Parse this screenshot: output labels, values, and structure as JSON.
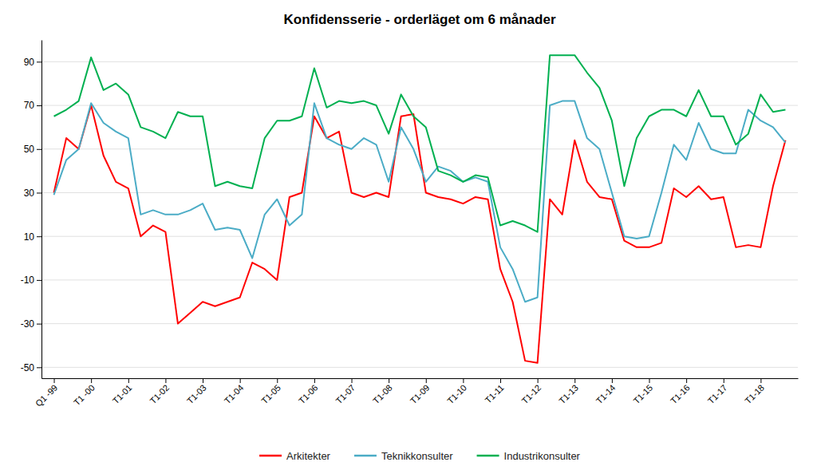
{
  "chart_data": {
    "type": "line",
    "title": "Konfidensserie - orderläget om 6 månader",
    "categories": [
      "Q1 -99",
      null,
      null,
      "T1 -00",
      null,
      null,
      "T1-01",
      null,
      null,
      "T1-02",
      null,
      null,
      "T1-03",
      null,
      null,
      "T1-04",
      null,
      null,
      "T1-05",
      null,
      null,
      "T1-06",
      null,
      null,
      "T1-07",
      null,
      null,
      "T1-08",
      null,
      null,
      "T1-09",
      null,
      null,
      "T1-10",
      null,
      null,
      "T1-11",
      null,
      null,
      "T1-12",
      null,
      null,
      "T1-13",
      null,
      null,
      "T1-14",
      null,
      null,
      "T1-15",
      null,
      null,
      "T1-16",
      null,
      null,
      "T1-17",
      null,
      null,
      "T1-18",
      null,
      null
    ],
    "series": [
      {
        "name": "Arkitekter",
        "color": "#FF0000",
        "values": [
          30,
          55,
          50,
          70,
          47,
          35,
          32,
          10,
          15,
          12,
          -30,
          -25,
          -20,
          -22,
          -20,
          -18,
          -2,
          -5,
          -10,
          28,
          30,
          65,
          55,
          58,
          30,
          28,
          30,
          28,
          65,
          66,
          30,
          28,
          27,
          25,
          28,
          27,
          -5,
          -20,
          -47,
          -48,
          27,
          20,
          54,
          35,
          28,
          27,
          8,
          5,
          5,
          7,
          32,
          28,
          33,
          27,
          28,
          5,
          6,
          5,
          33,
          54
        ]
      },
      {
        "name": "Teknikkonsulter",
        "color": "#4BACC6",
        "values": [
          29,
          45,
          50,
          71,
          62,
          58,
          55,
          20,
          22,
          20,
          20,
          22,
          25,
          13,
          14,
          13,
          0,
          20,
          27,
          15,
          20,
          71,
          55,
          52,
          50,
          55,
          52,
          35,
          60,
          50,
          35,
          42,
          40,
          35,
          37,
          35,
          5,
          -5,
          -20,
          -18,
          70,
          72,
          72,
          55,
          50,
          30,
          10,
          9,
          10,
          30,
          52,
          45,
          62,
          50,
          48,
          48,
          68,
          63,
          60,
          53
        ]
      },
      {
        "name": "Industrikonsulter",
        "color": "#00B050",
        "values": [
          65,
          68,
          72,
          92,
          77,
          80,
          75,
          60,
          58,
          55,
          67,
          65,
          65,
          33,
          35,
          33,
          32,
          55,
          63,
          63,
          65,
          87,
          69,
          72,
          71,
          72,
          70,
          57,
          75,
          65,
          60,
          40,
          38,
          35,
          38,
          37,
          15,
          17,
          15,
          12,
          93,
          93,
          93,
          85,
          78,
          63,
          33,
          55,
          65,
          68,
          68,
          65,
          77,
          65,
          65,
          52,
          57,
          75,
          67,
          68
        ]
      }
    ],
    "ylim": [
      -55,
      100
    ],
    "yticks": [
      -50,
      -30,
      -10,
      10,
      30,
      50,
      70,
      90
    ],
    "grid": true,
    "legend": "bottom"
  }
}
